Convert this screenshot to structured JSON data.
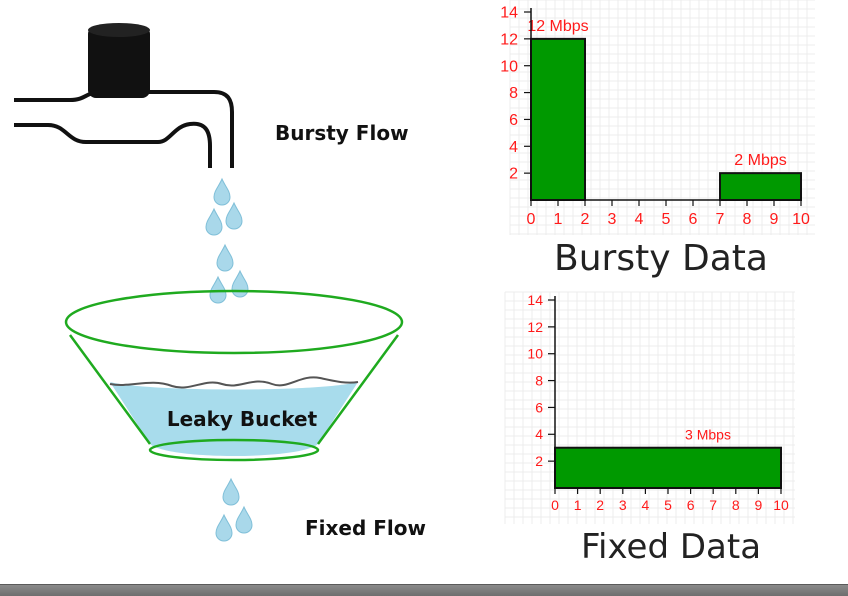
{
  "labels": {
    "bursty_flow": "Bursty Flow",
    "leaky_bucket": "Leaky Bucket",
    "fixed_flow": "Fixed Flow"
  },
  "colors": {
    "bar": "#009900",
    "axis_text": "#ff1a1a",
    "bucket_outline": "#1faa1f",
    "water": "#a8dcec",
    "drop": "#a9d8ea",
    "faucet": "#111111"
  },
  "chart_data": [
    {
      "type": "bar",
      "title": "Bursty Data",
      "xlim": [
        0,
        10
      ],
      "ylim": [
        0,
        14
      ],
      "x_ticks": [
        "0",
        "1",
        "2",
        "3",
        "4",
        "5",
        "6",
        "7",
        "8",
        "9",
        "10"
      ],
      "y_ticks": [
        "2",
        "4",
        "6",
        "8",
        "10",
        "12",
        "14"
      ],
      "bars": [
        {
          "x0": 0,
          "x1": 2,
          "value": 12,
          "label": "12 Mbps"
        },
        {
          "x0": 7,
          "x1": 10,
          "value": 2,
          "label": "2 Mbps"
        }
      ]
    },
    {
      "type": "bar",
      "title": "Fixed Data",
      "xlim": [
        0,
        10
      ],
      "ylim": [
        0,
        14
      ],
      "x_ticks": [
        "0",
        "1",
        "2",
        "3",
        "4",
        "5",
        "6",
        "7",
        "8",
        "9",
        "10"
      ],
      "y_ticks": [
        "2",
        "4",
        "6",
        "8",
        "10",
        "12",
        "14"
      ],
      "bars": [
        {
          "x0": 0,
          "x1": 10,
          "value": 3,
          "label": "3 Mbps"
        }
      ]
    }
  ]
}
